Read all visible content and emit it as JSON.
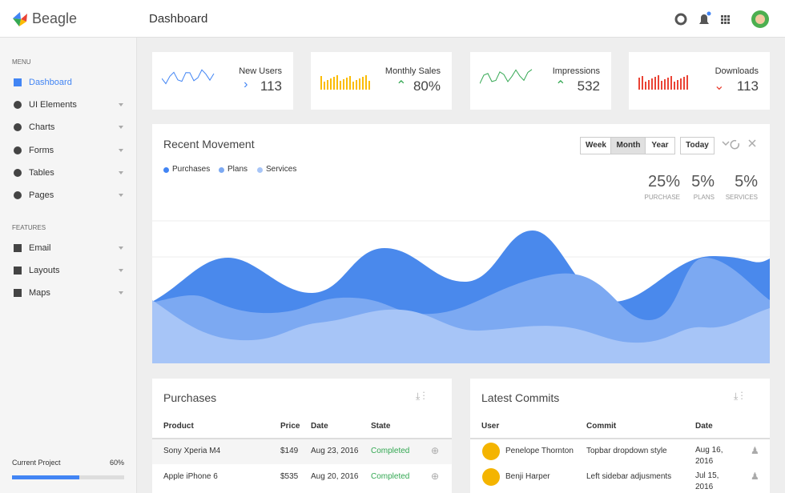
{
  "header": {
    "brand": "Beagle",
    "page": "Dashboard"
  },
  "sidebar": {
    "menu_label": "MENU",
    "menu": [
      "Dashboard",
      "UI Elements",
      "Charts",
      "Forms",
      "Tables",
      "Pages"
    ],
    "features_label": "FEATURES",
    "features": [
      "Email",
      "Layouts",
      "Maps"
    ],
    "project": {
      "label": "Current Project",
      "value": "60%"
    }
  },
  "widgets": [
    {
      "title": "New Users",
      "value": "113"
    },
    {
      "title": "Monthly Sales",
      "value": "80%"
    },
    {
      "title": "Impressions",
      "value": "532"
    },
    {
      "title": "Downloads",
      "value": "113"
    }
  ],
  "movement": {
    "title": "Recent Movement",
    "buttons": [
      "Week",
      "Month",
      "Year"
    ],
    "today": "Today",
    "legend": [
      "Purchases",
      "Plans",
      "Services"
    ],
    "stats": [
      {
        "value": "25%",
        "label": "PURCHASE"
      },
      {
        "value": "5%",
        "label": "PLANS"
      },
      {
        "value": "5%",
        "label": "SERVICES"
      }
    ]
  },
  "purchases": {
    "title": "Purchases",
    "headers": [
      "Product",
      "Price",
      "Date",
      "State"
    ],
    "rows": [
      [
        "Sony Xperia M4",
        "$149",
        "Aug 23, 2016",
        "Completed"
      ],
      [
        "Apple iPhone 6",
        "$535",
        "Aug 20, 2016",
        "Completed"
      ]
    ]
  },
  "commits": {
    "title": "Latest Commits",
    "headers": [
      "User",
      "Commit",
      "Date"
    ],
    "rows": [
      [
        "Penelope Thornton",
        "Topbar dropdown style",
        "Aug 16, 2016"
      ],
      [
        "Benji Harper",
        "Left sidebar adjusments",
        "Jul 15, 2016"
      ]
    ]
  }
}
